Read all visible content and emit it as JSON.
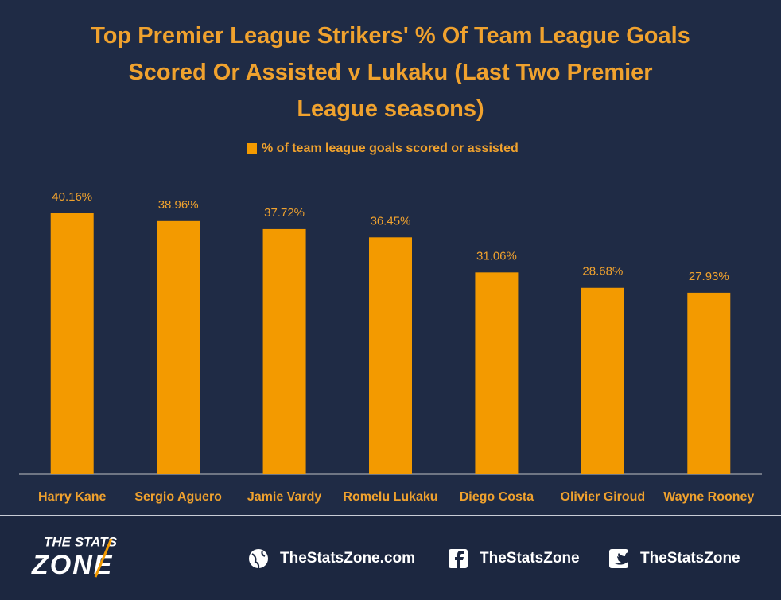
{
  "chart_data": {
    "type": "bar",
    "title": "Top Premier League Strikers' % Of Team League Goals Scored Or Assisted v Lukaku (Last Two Premier League seasons)",
    "categories": [
      "Harry Kane",
      "Sergio Aguero",
      "Jamie Vardy",
      "Romelu Lukaku",
      "Diego Costa",
      "Olivier Giroud",
      "Wayne Rooney"
    ],
    "series": [
      {
        "name": "% of team league goals scored or assisted",
        "color": "#f39a00",
        "values": [
          40.16,
          38.96,
          37.72,
          36.45,
          31.06,
          28.68,
          27.93
        ],
        "value_labels": [
          "40.16%",
          "38.96%",
          "37.72%",
          "36.45%",
          "31.06%",
          "28.68%",
          "27.93%"
        ]
      }
    ],
    "legend": "top"
  },
  "footer": {
    "logo_top": "THE STATS",
    "logo_bottom": "ZONE",
    "website": "TheStatsZone.com",
    "facebook": "TheStatsZone",
    "twitter": "TheStatsZone"
  }
}
